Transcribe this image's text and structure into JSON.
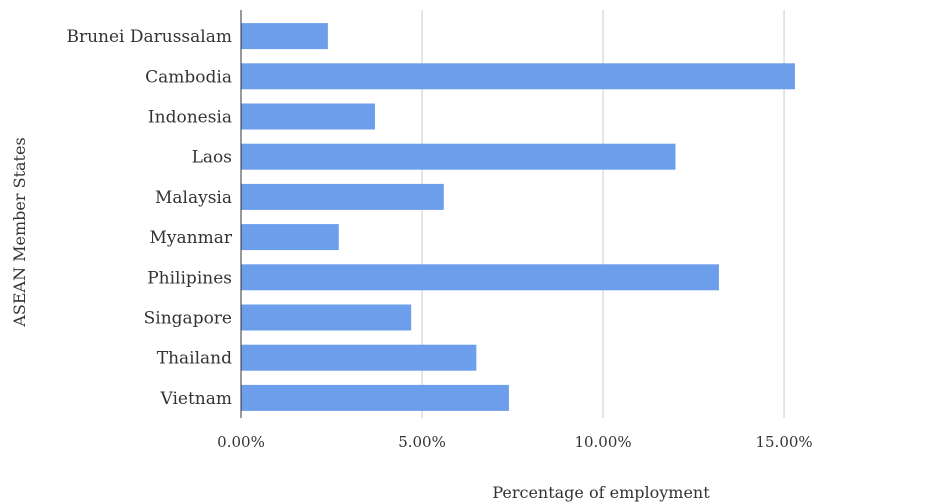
{
  "chart_data": {
    "type": "bar",
    "orientation": "horizontal",
    "categories": [
      "Brunei Darussalam",
      "Cambodia",
      "Indonesia",
      "Laos",
      "Malaysia",
      "Myanmar",
      "Philipines",
      "Singapore",
      "Thailand",
      "Vietnam"
    ],
    "values": [
      2.4,
      15.3,
      3.7,
      12.0,
      5.6,
      2.7,
      13.2,
      4.7,
      6.5,
      7.4
    ],
    "xlabel": "Percentage of employment",
    "ylabel": "ASEAN Member States",
    "xlim": [
      0,
      19.5
    ],
    "xticks": [
      0,
      5,
      10,
      15
    ],
    "xtick_labels": [
      "0.00%",
      "5.00%",
      "10.00%",
      "15.00%"
    ],
    "grid": "vertical",
    "legend": "none",
    "bar_color": "#6d9eeb"
  }
}
